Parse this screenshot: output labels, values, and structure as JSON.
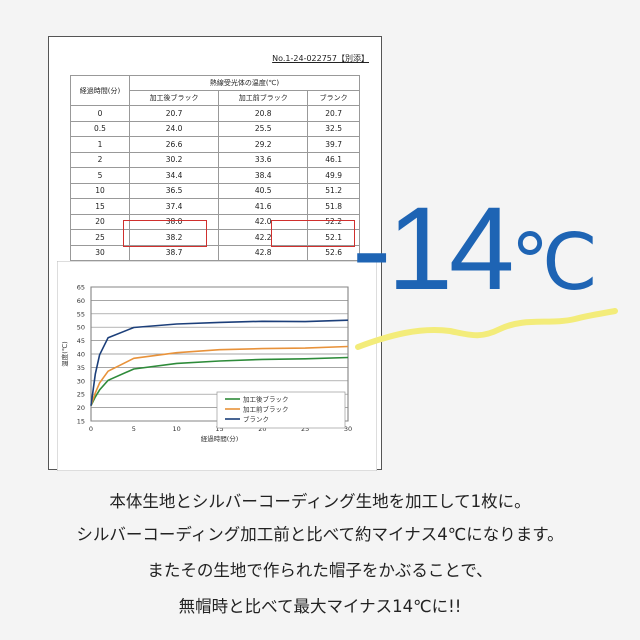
{
  "document": {
    "doc_number": "No.1-24-022757【別添】",
    "table": {
      "header_time": "経過時間(分)",
      "header_group": "熱線受光体の温度(℃)",
      "columns": [
        "加工後ブラック",
        "加工前ブラック",
        "ブランク"
      ],
      "rows": [
        [
          "0",
          "20.7",
          "20.8",
          "20.7"
        ],
        [
          "0.5",
          "24.0",
          "25.5",
          "32.5"
        ],
        [
          "1",
          "26.6",
          "29.2",
          "39.7"
        ],
        [
          "2",
          "30.2",
          "33.6",
          "46.1"
        ],
        [
          "5",
          "34.4",
          "38.4",
          "49.9"
        ],
        [
          "10",
          "36.5",
          "40.5",
          "51.2"
        ],
        [
          "15",
          "37.4",
          "41.6",
          "51.8"
        ],
        [
          "20",
          "38.0",
          "42.0",
          "52.2"
        ],
        [
          "25",
          "38.2",
          "42.2",
          "52.1"
        ],
        [
          "30",
          "38.7",
          "42.8",
          "52.6"
        ]
      ],
      "highlight_color": "#d0302e"
    }
  },
  "chart_data": {
    "type": "line",
    "xlabel": "経過時間(分)",
    "ylabel": "温度(℃)",
    "xlim": [
      0,
      30
    ],
    "ylim": [
      15,
      65
    ],
    "xticks": [
      "0",
      "5",
      "10",
      "15",
      "20",
      "25",
      "30"
    ],
    "yticks": [
      "15",
      "20",
      "25",
      "30",
      "35",
      "40",
      "45",
      "50",
      "55",
      "60",
      "65"
    ],
    "grid": "horizontal",
    "legend_placement": "bottom-right",
    "x": [
      0,
      0.5,
      1,
      2,
      5,
      10,
      15,
      20,
      25,
      30
    ],
    "series": [
      {
        "name": "加工後ブラック",
        "color": "#2e8b3a",
        "values": [
          20.7,
          24.0,
          26.6,
          30.2,
          34.4,
          36.5,
          37.4,
          38.0,
          38.2,
          38.7
        ]
      },
      {
        "name": "加工前ブラック",
        "color": "#e8923a",
        "values": [
          20.8,
          25.5,
          29.2,
          33.6,
          38.4,
          40.5,
          41.6,
          42.0,
          42.2,
          42.8
        ]
      },
      {
        "name": "ブランク",
        "color": "#1c3f7a",
        "values": [
          20.7,
          32.5,
          39.7,
          46.1,
          49.9,
          51.2,
          51.8,
          52.2,
          52.1,
          52.6
        ]
      }
    ]
  },
  "headline": {
    "value": "-14",
    "unit": "℃",
    "color": "#1e64b4",
    "underline_color": "#f3ec7a"
  },
  "caption_lines": [
    "本体生地とシルバーコーディング生地を加工して1枚に。",
    "シルバーコーディング加工前と比べて約マイナス4℃になります。",
    "またその生地で作られた帽子をかぶることで、",
    "無帽時と比べて最大マイナス14℃に!!"
  ]
}
